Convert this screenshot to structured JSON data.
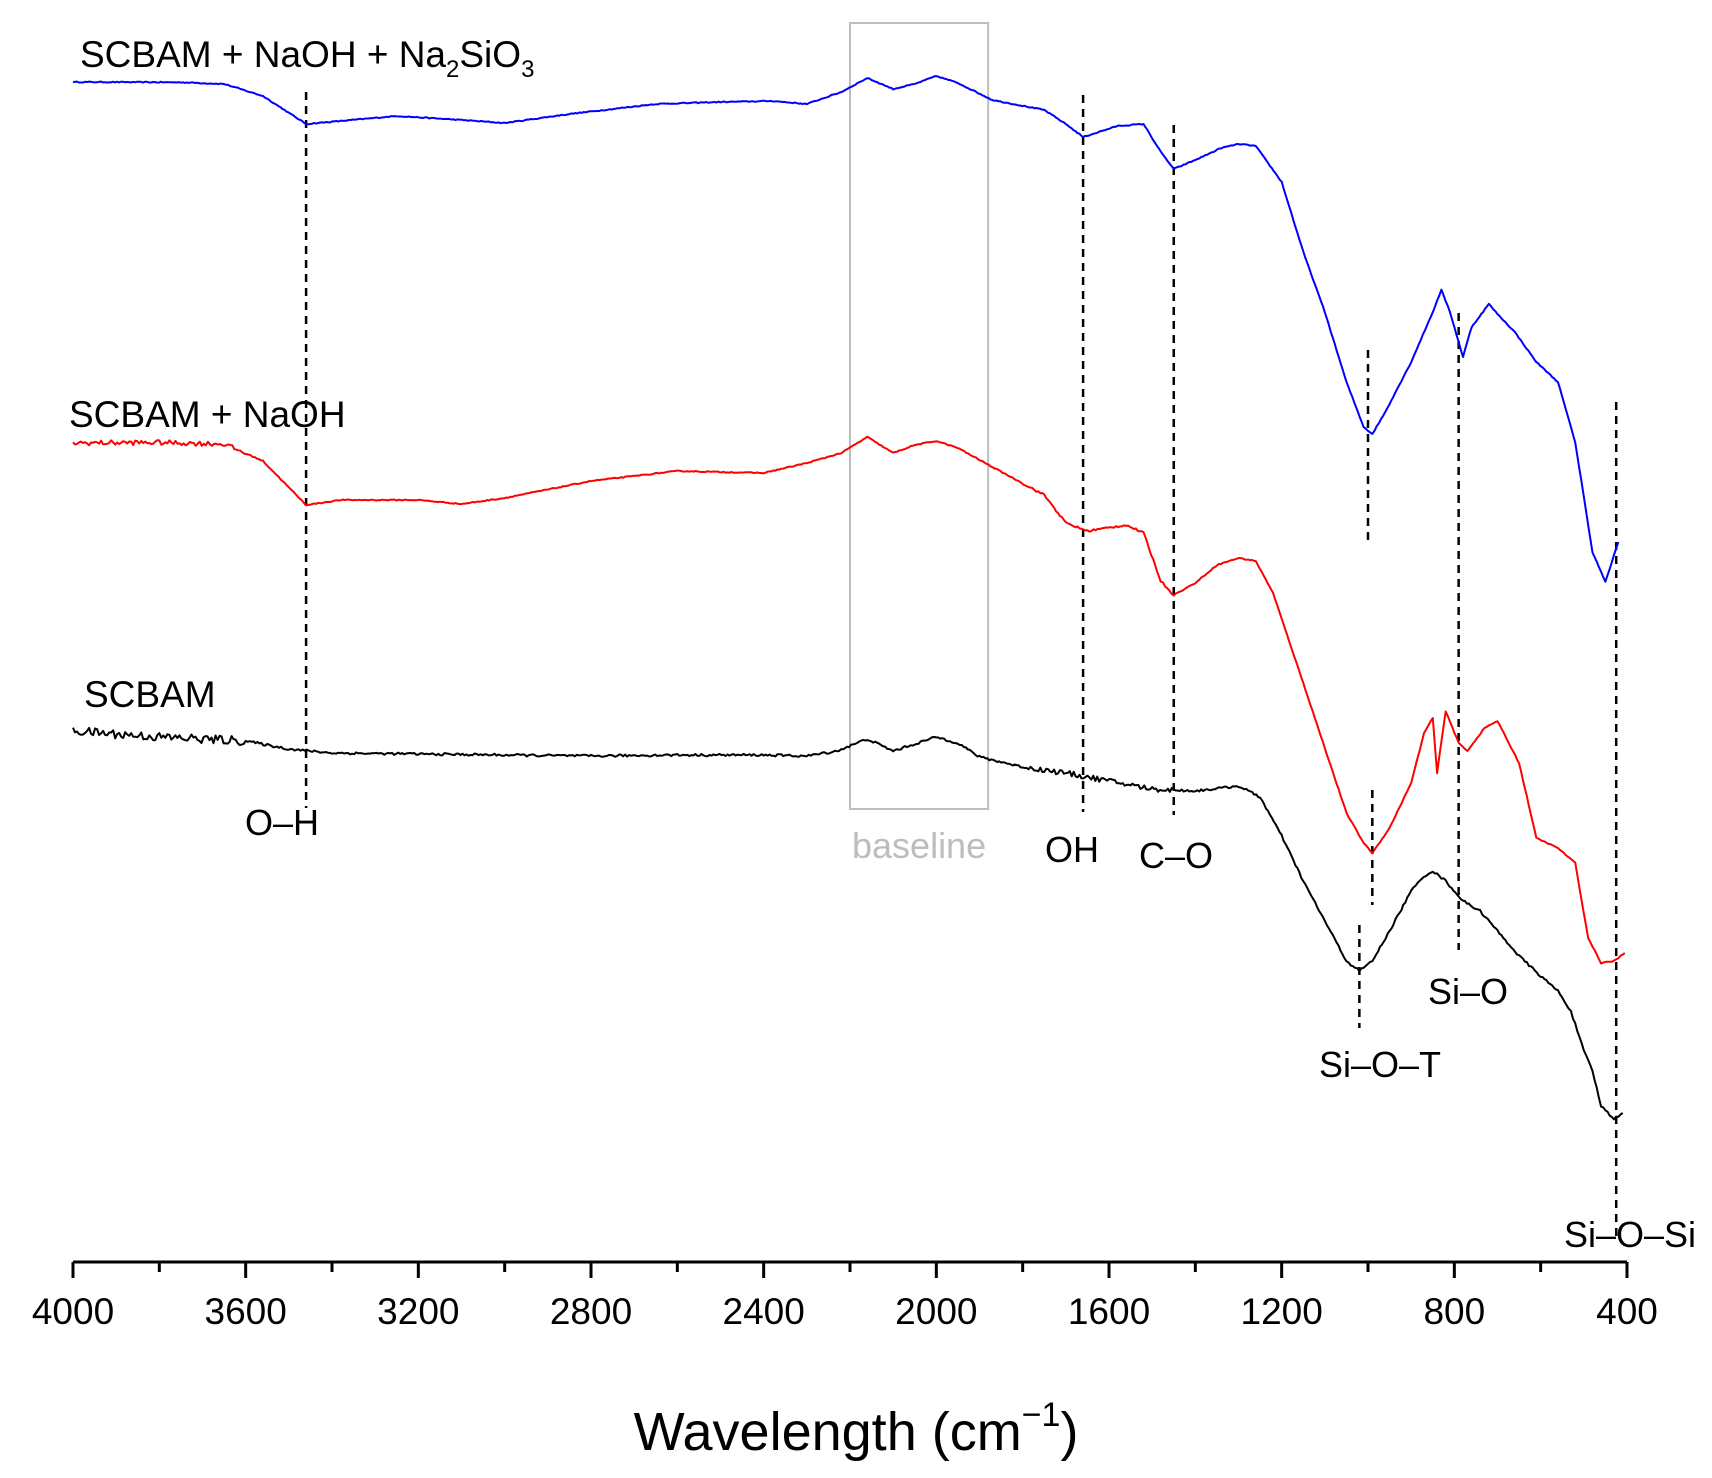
{
  "chart_data": {
    "type": "line",
    "title": "",
    "xlabel": "Wavelength (cm",
    "xlabel_sup": "−1",
    "xlabel_end": ")",
    "ylabel": "",
    "xlim": [
      4000,
      400
    ],
    "x_ticks": [
      "4000",
      "3600",
      "3200",
      "2800",
      "2400",
      "2000",
      "1600",
      "1200",
      "800",
      "400"
    ],
    "y_axis_visible": false,
    "y_units": "transmittance (arbitrary, vertically offset)",
    "series": [
      {
        "name": "SCBAM + NaOH + Na2SiO3",
        "label_parts": [
          "SCBAM + NaOH + Na",
          "2",
          "SiO",
          "3"
        ],
        "color": "#0000ff",
        "offset": 0,
        "noise": 0.25,
        "points": [
          [
            4000,
            0
          ],
          [
            3750,
            -0.3
          ],
          [
            3650,
            -2
          ],
          [
            3560,
            -14
          ],
          [
            3460,
            -42
          ],
          [
            3380,
            -39
          ],
          [
            3250,
            -34
          ],
          [
            3100,
            -38
          ],
          [
            3000,
            -41
          ],
          [
            2850,
            -32
          ],
          [
            2650,
            -22
          ],
          [
            2500,
            -20
          ],
          [
            2380,
            -19
          ],
          [
            2300,
            -22
          ],
          [
            2220,
            -10
          ],
          [
            2160,
            4
          ],
          [
            2100,
            -7
          ],
          [
            2050,
            -2
          ],
          [
            2000,
            6
          ],
          [
            1950,
            -1
          ],
          [
            1870,
            -18
          ],
          [
            1750,
            -28
          ],
          [
            1700,
            -42
          ],
          [
            1660,
            -55
          ],
          [
            1580,
            -44
          ],
          [
            1520,
            -42
          ],
          [
            1480,
            -70
          ],
          [
            1450,
            -87
          ],
          [
            1400,
            -78
          ],
          [
            1340,
            -66
          ],
          [
            1300,
            -62
          ],
          [
            1260,
            -64
          ],
          [
            1200,
            -100
          ],
          [
            1150,
            -170
          ],
          [
            1100,
            -230
          ],
          [
            1050,
            -300
          ],
          [
            1010,
            -345
          ],
          [
            990,
            -352
          ],
          [
            960,
            -330
          ],
          [
            900,
            -280
          ],
          [
            850,
            -230
          ],
          [
            830,
            -208
          ],
          [
            810,
            -230
          ],
          [
            780,
            -275
          ],
          [
            760,
            -245
          ],
          [
            720,
            -222
          ],
          [
            700,
            -232
          ],
          [
            660,
            -250
          ],
          [
            610,
            -280
          ],
          [
            560,
            -300
          ],
          [
            520,
            -360
          ],
          [
            480,
            -470
          ],
          [
            450,
            -500
          ],
          [
            420,
            -460
          ]
        ]
      },
      {
        "name": "SCBAM + NaOH",
        "label_parts": [
          "SCBAM + NaOH"
        ],
        "color": "#ff0000",
        "offset": 0,
        "noise": 0.25,
        "points": [
          [
            4000,
            0
          ],
          [
            3800,
            0.5
          ],
          [
            3650,
            -1
          ],
          [
            3560,
            -18
          ],
          [
            3460,
            -62
          ],
          [
            3380,
            -57
          ],
          [
            3200,
            -57
          ],
          [
            3100,
            -61
          ],
          [
            3000,
            -55
          ],
          [
            2800,
            -38
          ],
          [
            2600,
            -28
          ],
          [
            2400,
            -30
          ],
          [
            2300,
            -20
          ],
          [
            2220,
            -10
          ],
          [
            2160,
            6
          ],
          [
            2100,
            -10
          ],
          [
            2050,
            -2
          ],
          [
            2000,
            2
          ],
          [
            1950,
            -5
          ],
          [
            1870,
            -24
          ],
          [
            1750,
            -52
          ],
          [
            1700,
            -80
          ],
          [
            1650,
            -88
          ],
          [
            1560,
            -82
          ],
          [
            1520,
            -90
          ],
          [
            1480,
            -138
          ],
          [
            1450,
            -152
          ],
          [
            1400,
            -140
          ],
          [
            1350,
            -122
          ],
          [
            1300,
            -115
          ],
          [
            1260,
            -118
          ],
          [
            1220,
            -150
          ],
          [
            1150,
            -240
          ],
          [
            1100,
            -305
          ],
          [
            1050,
            -370
          ],
          [
            1010,
            -400
          ],
          [
            990,
            -410
          ],
          [
            950,
            -385
          ],
          [
            900,
            -340
          ],
          [
            870,
            -290
          ],
          [
            850,
            -275
          ],
          [
            840,
            -330
          ],
          [
            820,
            -268
          ],
          [
            790,
            -300
          ],
          [
            770,
            -308
          ],
          [
            730,
            -285
          ],
          [
            700,
            -278
          ],
          [
            650,
            -320
          ],
          [
            610,
            -395
          ],
          [
            560,
            -405
          ],
          [
            520,
            -420
          ],
          [
            490,
            -495
          ],
          [
            460,
            -520
          ],
          [
            430,
            -518
          ],
          [
            405,
            -510
          ]
        ]
      },
      {
        "name": "SCBAM",
        "label_parts": [
          "SCBAM"
        ],
        "color": "#000000",
        "offset": 0,
        "noise": 0.6,
        "points": [
          [
            4000,
            0
          ],
          [
            3800,
            -6
          ],
          [
            3600,
            -10
          ],
          [
            3500,
            -18
          ],
          [
            3400,
            -22
          ],
          [
            3200,
            -23
          ],
          [
            3000,
            -24
          ],
          [
            2800,
            -25
          ],
          [
            2600,
            -24
          ],
          [
            2400,
            -24
          ],
          [
            2300,
            -25
          ],
          [
            2230,
            -20
          ],
          [
            2160,
            -8
          ],
          [
            2100,
            -20
          ],
          [
            2000,
            -6
          ],
          [
            1950,
            -12
          ],
          [
            1900,
            -26
          ],
          [
            1800,
            -36
          ],
          [
            1700,
            -42
          ],
          [
            1600,
            -50
          ],
          [
            1500,
            -58
          ],
          [
            1400,
            -60
          ],
          [
            1300,
            -55
          ],
          [
            1250,
            -66
          ],
          [
            1200,
            -105
          ],
          [
            1150,
            -150
          ],
          [
            1100,
            -190
          ],
          [
            1050,
            -230
          ],
          [
            1020,
            -240
          ],
          [
            990,
            -230
          ],
          [
            950,
            -200
          ],
          [
            900,
            -160
          ],
          [
            870,
            -145
          ],
          [
            850,
            -140
          ],
          [
            820,
            -150
          ],
          [
            780,
            -170
          ],
          [
            740,
            -180
          ],
          [
            700,
            -200
          ],
          [
            650,
            -225
          ],
          [
            600,
            -245
          ],
          [
            560,
            -260
          ],
          [
            530,
            -280
          ],
          [
            500,
            -320
          ],
          [
            480,
            -340
          ],
          [
            460,
            -375
          ],
          [
            430,
            -388
          ],
          [
            410,
            -382
          ]
        ]
      }
    ],
    "annotations": [
      {
        "label": "O–H",
        "wavenumber": 3460
      },
      {
        "label": "OH",
        "wavenumber": 1660
      },
      {
        "label": "C–O",
        "wavenumber": 1450
      },
      {
        "label": "Si–O–T",
        "wavenumber": 1000
      },
      {
        "label": "Si–O",
        "wavenumber": 780
      },
      {
        "label": "Si–O–Si",
        "wavenumber": 430
      }
    ],
    "baseline_box": {
      "label": "baseline",
      "from": 2200,
      "to": 1880
    }
  }
}
